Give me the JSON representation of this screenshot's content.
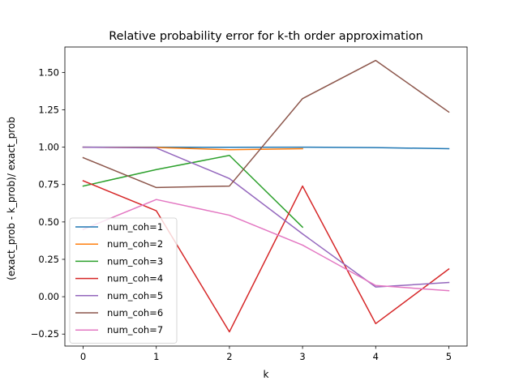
{
  "chart_data": {
    "type": "line",
    "title": "Relative probability error for k-th order approximation",
    "xlabel": "k",
    "ylabel": "(exact_prob - k_prob)/ exact_prob",
    "xlim": [
      -0.25,
      5.25
    ],
    "ylim": [
      -0.33,
      1.67
    ],
    "xticks": [
      0,
      1,
      2,
      3,
      4,
      5
    ],
    "yticks": [
      -0.25,
      0.0,
      0.25,
      0.5,
      0.75,
      1.0,
      1.25,
      1.5
    ],
    "ytick_labels": [
      "−0.25",
      "0.00",
      "0.25",
      "0.50",
      "0.75",
      "1.00",
      "1.25",
      "1.50"
    ],
    "grid": false,
    "legend_position": "lower-left",
    "series": [
      {
        "name": "num_coh=1",
        "color": "#1f77b4",
        "x": [
          0,
          1,
          2,
          3,
          4,
          5
        ],
        "y": [
          1.0,
          1.0,
          0.999,
          1.0,
          0.997,
          0.99
        ]
      },
      {
        "name": "num_coh=2",
        "color": "#ff7f0e",
        "x": [
          0,
          1,
          2,
          3
        ],
        "y": [
          1.0,
          0.998,
          0.983,
          0.99
        ]
      },
      {
        "name": "num_coh=3",
        "color": "#2ca02c",
        "x": [
          0,
          1,
          2,
          3
        ],
        "y": [
          0.74,
          0.85,
          0.945,
          0.465
        ]
      },
      {
        "name": "num_coh=4",
        "color": "#d62728",
        "x": [
          0,
          1,
          2,
          3,
          4,
          5
        ],
        "y": [
          0.775,
          0.575,
          -0.235,
          0.74,
          -0.18,
          0.185
        ]
      },
      {
        "name": "num_coh=5",
        "color": "#9467bd",
        "x": [
          0,
          1,
          2,
          3,
          4,
          5
        ],
        "y": [
          1.0,
          0.995,
          0.79,
          0.42,
          0.065,
          0.095
        ]
      },
      {
        "name": "num_coh=6",
        "color": "#8c564b",
        "x": [
          0,
          1,
          2,
          3,
          4,
          5
        ],
        "y": [
          0.93,
          0.73,
          0.74,
          1.325,
          1.58,
          1.235
        ]
      },
      {
        "name": "num_coh=7",
        "color": "#e377c2",
        "x": [
          0,
          1,
          2,
          3,
          4,
          5
        ],
        "y": [
          0.45,
          0.65,
          0.545,
          0.345,
          0.075,
          0.04
        ]
      }
    ]
  }
}
